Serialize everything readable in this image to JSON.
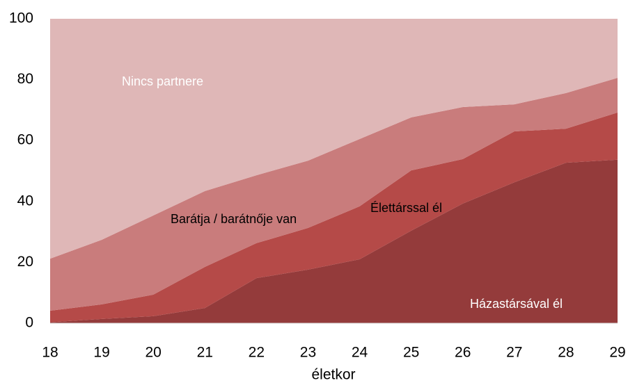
{
  "chart_data": {
    "type": "stacked_area",
    "x": [
      18,
      19,
      20,
      21,
      22,
      23,
      24,
      25,
      26,
      27,
      28,
      29
    ],
    "xlim": [
      18,
      29
    ],
    "xticks": [
      18,
      19,
      20,
      21,
      22,
      23,
      24,
      25,
      26,
      27,
      28,
      29
    ],
    "ylim": [
      0,
      100
    ],
    "yticks": [
      0,
      20,
      40,
      60,
      80,
      100
    ],
    "xlabel": "életkor",
    "grid": false,
    "series": [
      {
        "name": "Házastársával él",
        "color": "#943b3b",
        "values": [
          0.3,
          1.4,
          2.3,
          5,
          14.8,
          17.6,
          21,
          30.4,
          39.3,
          46.3,
          52.7,
          53.7
        ]
      },
      {
        "name": "Élettárssal  él",
        "color": "#b54a48",
        "values": [
          3.8,
          4.8,
          7.1,
          13.5,
          11.5,
          13.7,
          17.4,
          19.8,
          14.6,
          16.7,
          11.2,
          15.5
        ]
      },
      {
        "name": "Barátja / barátnője van",
        "color": "#c97c7c",
        "values": [
          17.1,
          21.2,
          26,
          24.9,
          22.3,
          22.1,
          22.1,
          17.4,
          17.1,
          8.9,
          11.7,
          11.4
        ]
      },
      {
        "name": "Nincs partnere",
        "color": "#dfb7b7",
        "values": [
          78.8,
          72.6,
          64.6,
          56.6,
          51.4,
          46.6,
          39.5,
          32.4,
          29,
          28.1,
          24.4,
          19.4
        ]
      }
    ]
  }
}
